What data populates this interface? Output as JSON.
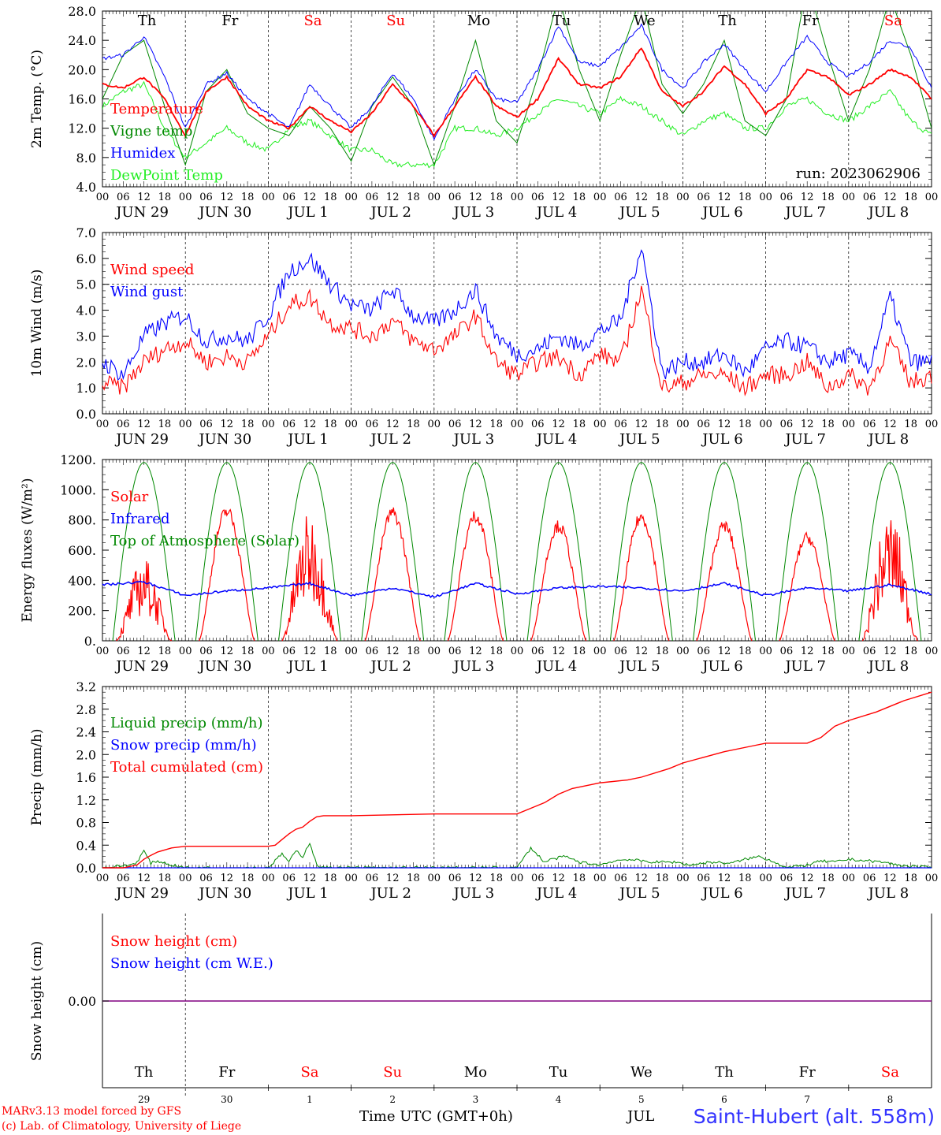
{
  "run_label": "run: 2023062906",
  "hour_ticks": [
    "00",
    "06",
    "12",
    "18"
  ],
  "date_labels": [
    "JUN 29",
    "JUN 30",
    "JUL  1",
    "JUL  2",
    "JUL  3",
    "JUL  4",
    "JUL  5",
    "JUL  6",
    "JUL  7",
    "JUL  8"
  ],
  "weekday_labels": [
    "Th",
    "Fr",
    "Sa",
    "Su",
    "Mo",
    "Tu",
    "We",
    "Th",
    "Fr",
    "Sa"
  ],
  "weekend_flags": [
    false,
    false,
    true,
    true,
    false,
    false,
    false,
    false,
    false,
    true
  ],
  "day_numbers": [
    "29",
    "30",
    "1",
    "2",
    "3",
    "4",
    "5",
    "6",
    "7",
    "8"
  ],
  "colors": {
    "red": "#ff0000",
    "green": "#008800",
    "blue": "#0000ff",
    "lightgreen": "#22ee22",
    "purple": "#800080"
  },
  "footer": {
    "model": "MARv3.13 model forced by GFS",
    "lab": "(c) Lab. of Climatology, University of Liege",
    "time_label": "Time UTC (GMT+0h)",
    "month_label": "JUL",
    "site": "Saint-Hubert (alt. 558m)"
  },
  "chart_data": [
    {
      "type": "line",
      "ylabel": "2m Temp. (°C)",
      "ylim": [
        4,
        28
      ],
      "yticks": [
        "28.0",
        "24.0",
        "20.0",
        "16.0",
        "12.0",
        "8.0",
        "4.0"
      ],
      "x_unit": "hours since 2023-06-29 00 UTC",
      "series": [
        {
          "name": "Temperature",
          "color": "red",
          "x": [
            0,
            6,
            12,
            18,
            24,
            30,
            36,
            42,
            48,
            54,
            60,
            66,
            72,
            78,
            84,
            90,
            96,
            102,
            108,
            114,
            120,
            126,
            132,
            138,
            144,
            150,
            156,
            162,
            168,
            174,
            180,
            186,
            192,
            198,
            204,
            210,
            216,
            222,
            228,
            234,
            240
          ],
          "values": [
            18,
            17.5,
            19,
            16,
            11,
            17,
            19,
            15,
            13,
            12,
            15,
            13,
            11.5,
            14,
            18,
            15,
            11,
            15,
            19,
            15,
            13.5,
            16,
            21.5,
            18,
            17.5,
            19,
            23,
            17,
            15,
            17,
            20.5,
            18,
            14,
            16,
            20,
            19,
            16.5,
            18,
            20,
            19,
            16
          ]
        },
        {
          "name": "Vigne temp",
          "color": "green",
          "x": [
            0,
            6,
            12,
            18,
            24,
            30,
            36,
            42,
            48,
            54,
            60,
            66,
            72,
            78,
            84,
            90,
            96,
            102,
            108,
            114,
            120,
            126,
            132,
            138,
            144,
            150,
            156,
            162,
            168,
            174,
            180,
            186,
            192,
            198,
            204,
            210,
            216,
            222,
            228,
            234,
            240
          ],
          "values": [
            16,
            22,
            24,
            15,
            7,
            17,
            20,
            14,
            12,
            11,
            15,
            12,
            7.5,
            15,
            19,
            15,
            7,
            15,
            24,
            13,
            10,
            19,
            30,
            20,
            13,
            22,
            30,
            18,
            14,
            18,
            24,
            13,
            11,
            16,
            32,
            22,
            13,
            20,
            30,
            22,
            12
          ]
        },
        {
          "name": "Humidex",
          "color": "blue",
          "x": [
            0,
            6,
            12,
            18,
            24,
            30,
            36,
            42,
            48,
            54,
            60,
            66,
            72,
            78,
            84,
            90,
            96,
            102,
            108,
            114,
            120,
            126,
            132,
            138,
            144,
            150,
            156,
            162,
            168,
            174,
            180,
            186,
            192,
            198,
            204,
            210,
            216,
            222,
            228,
            234,
            240
          ],
          "values": [
            21.5,
            22,
            24.5,
            19,
            12,
            18,
            19.5,
            16,
            14,
            12,
            18,
            15,
            12,
            15,
            19.5,
            16,
            10.5,
            16,
            20,
            16,
            15.5,
            20,
            26,
            21,
            20.5,
            23,
            26,
            20,
            17.5,
            21,
            23.5,
            20,
            17,
            21,
            24.5,
            21,
            19,
            21,
            24,
            23,
            17.5
          ]
        },
        {
          "name": "DewPoint Temp",
          "color": "lightgreen",
          "x": [
            0,
            6,
            12,
            18,
            24,
            30,
            36,
            42,
            48,
            54,
            60,
            66,
            72,
            78,
            84,
            90,
            96,
            102,
            108,
            114,
            120,
            126,
            132,
            138,
            144,
            150,
            156,
            162,
            168,
            174,
            180,
            186,
            192,
            198,
            204,
            210,
            216,
            222,
            228,
            234,
            240
          ],
          "values": [
            15,
            17,
            18,
            12,
            8,
            10,
            12,
            10,
            9,
            12,
            13,
            11,
            9,
            9,
            7,
            7,
            7,
            12,
            12,
            11,
            12,
            14,
            16,
            15,
            14,
            16,
            15,
            13,
            11,
            13,
            14,
            12,
            12,
            15,
            16,
            14,
            13,
            15,
            17,
            13,
            11
          ]
        }
      ]
    },
    {
      "type": "line",
      "ylabel": "10m Wind (m/s)",
      "ylim": [
        0,
        7
      ],
      "yticks": [
        "7.0",
        "6.0",
        "5.0",
        "4.0",
        "3.0",
        "2.0",
        "1.0",
        "0.0"
      ],
      "x_unit": "hours since 2023-06-29 00 UTC",
      "series": [
        {
          "name": "Wind speed",
          "color": "red",
          "x": [
            0,
            6,
            12,
            18,
            24,
            30,
            36,
            42,
            48,
            54,
            60,
            66,
            72,
            78,
            84,
            90,
            96,
            102,
            108,
            114,
            120,
            126,
            132,
            138,
            144,
            150,
            156,
            162,
            168,
            174,
            180,
            186,
            192,
            198,
            204,
            210,
            216,
            222,
            228,
            234,
            240
          ],
          "values": [
            1.2,
            1,
            2,
            2.5,
            2.8,
            2,
            2.2,
            2,
            3,
            4.2,
            4.5,
            3.5,
            3.3,
            3,
            3.6,
            2.8,
            2.5,
            3,
            3.8,
            2,
            1.5,
            2,
            2.2,
            1.5,
            2.3,
            2,
            4.8,
            1,
            1.2,
            1.5,
            1.5,
            1,
            1.5,
            1.5,
            2,
            1,
            1.5,
            1,
            2.8,
            1.2,
            1.5
          ]
        },
        {
          "name": "Wind gust",
          "color": "blue",
          "x": [
            0,
            6,
            12,
            18,
            24,
            30,
            36,
            42,
            48,
            54,
            60,
            66,
            72,
            78,
            84,
            90,
            96,
            102,
            108,
            114,
            120,
            126,
            132,
            138,
            144,
            150,
            156,
            162,
            168,
            174,
            180,
            186,
            192,
            198,
            204,
            210,
            216,
            222,
            228,
            234,
            240
          ],
          "values": [
            2,
            1.5,
            3,
            3.5,
            3.8,
            2.8,
            3,
            2.8,
            3.8,
            5.5,
            6,
            5,
            4.2,
            4,
            4.8,
            3.8,
            3.5,
            4,
            4.8,
            3,
            2.3,
            2.5,
            3,
            2.6,
            3.2,
            3.6,
            6.5,
            1.6,
            2,
            2,
            2.3,
            1.6,
            2.5,
            2.8,
            2.6,
            2,
            2.3,
            1.8,
            4.5,
            2,
            2
          ]
        }
      ]
    },
    {
      "type": "line",
      "ylabel": "Energy fluxes (W/m²)",
      "ylim": [
        0,
        1200
      ],
      "yticks": [
        "1200.",
        "1000.",
        "800.",
        "600.",
        "400.",
        "200.",
        "0."
      ],
      "x_unit": "hours since 2023-06-29 00 UTC",
      "solar_peaks": [
        550,
        900,
        850,
        890,
        870,
        800,
        860,
        800,
        720,
        860
      ],
      "top_of_atmosphere_peak": 1180,
      "series": [
        {
          "name": "Solar",
          "color": "red"
        },
        {
          "name": "Infrared",
          "color": "blue",
          "x": [
            0,
            12,
            24,
            36,
            48,
            60,
            72,
            84,
            96,
            108,
            120,
            132,
            144,
            156,
            168,
            180,
            192,
            204,
            216,
            228,
            240
          ],
          "values": [
            370,
            390,
            300,
            330,
            350,
            380,
            300,
            350,
            290,
            380,
            310,
            350,
            360,
            350,
            330,
            380,
            300,
            350,
            330,
            370,
            310
          ]
        },
        {
          "name": "Top of Atmosphere (Solar)",
          "color": "green"
        }
      ]
    },
    {
      "type": "line",
      "ylabel": "Precip (mm/h)",
      "ylim": [
        0,
        3.2
      ],
      "yticks": [
        "3.2",
        "2.8",
        "2.4",
        "2.0",
        "1.6",
        "1.2",
        "0.8",
        "0.4",
        "0.0"
      ],
      "x_unit": "hours since 2023-06-29 00 UTC",
      "series": [
        {
          "name": "Liquid precip (mm/h)",
          "color": "green",
          "x": [
            0,
            8,
            10,
            12,
            14,
            16,
            20,
            24,
            30,
            36,
            48,
            52,
            54,
            56,
            58,
            60,
            62,
            64,
            66,
            72,
            120,
            124,
            128,
            130,
            134,
            138,
            144,
            148,
            152,
            156,
            160,
            166,
            170,
            176,
            182,
            186,
            190,
            194,
            198,
            204,
            208,
            212,
            216,
            222,
            226,
            230,
            236,
            240
          ],
          "values": [
            0,
            0.05,
            0.1,
            0.3,
            0.08,
            0.12,
            0.05,
            0,
            0,
            0,
            0,
            0.25,
            0.1,
            0.3,
            0.2,
            0.45,
            0.05,
            0,
            0,
            0,
            0,
            0.35,
            0.1,
            0.15,
            0.2,
            0.1,
            0.05,
            0.12,
            0.15,
            0.12,
            0.1,
            0.1,
            0.05,
            0.1,
            0.08,
            0.15,
            0.2,
            0.12,
            0,
            0.05,
            0.12,
            0.1,
            0.15,
            0.12,
            0.1,
            0.05,
            0.02,
            0
          ]
        },
        {
          "name": "Snow precip (mm/h)",
          "color": "blue"
        },
        {
          "name": "Total cumulated (cm)",
          "color": "red",
          "x": [
            0,
            6,
            10,
            12,
            14,
            16,
            20,
            24,
            30,
            36,
            48,
            50,
            52,
            54,
            56,
            58,
            60,
            62,
            64,
            66,
            72,
            96,
            108,
            120,
            124,
            128,
            132,
            136,
            144,
            152,
            156,
            164,
            168,
            180,
            188,
            192,
            200,
            204,
            208,
            212,
            216,
            224,
            232,
            240
          ],
          "values": [
            0,
            0,
            0.05,
            0.15,
            0.22,
            0.28,
            0.35,
            0.38,
            0.38,
            0.38,
            0.38,
            0.4,
            0.5,
            0.6,
            0.68,
            0.72,
            0.82,
            0.9,
            0.92,
            0.92,
            0.92,
            0.95,
            0.95,
            0.95,
            1.05,
            1.15,
            1.3,
            1.4,
            1.5,
            1.55,
            1.6,
            1.75,
            1.85,
            2.05,
            2.15,
            2.2,
            2.2,
            2.2,
            2.3,
            2.5,
            2.6,
            2.75,
            2.95,
            3.1
          ]
        }
      ]
    },
    {
      "type": "line",
      "ylabel": "Snow height (cm)",
      "yticks": [
        "0.00"
      ],
      "x_unit": "hours since 2023-06-29 00 UTC",
      "series": [
        {
          "name": "Snow height (cm)",
          "color": "red",
          "x": [
            0,
            240
          ],
          "values": [
            0,
            0
          ]
        },
        {
          "name": "Snow height (cm W.E.)",
          "color": "blue",
          "x": [
            0,
            240
          ],
          "values": [
            0,
            0
          ]
        }
      ]
    }
  ]
}
